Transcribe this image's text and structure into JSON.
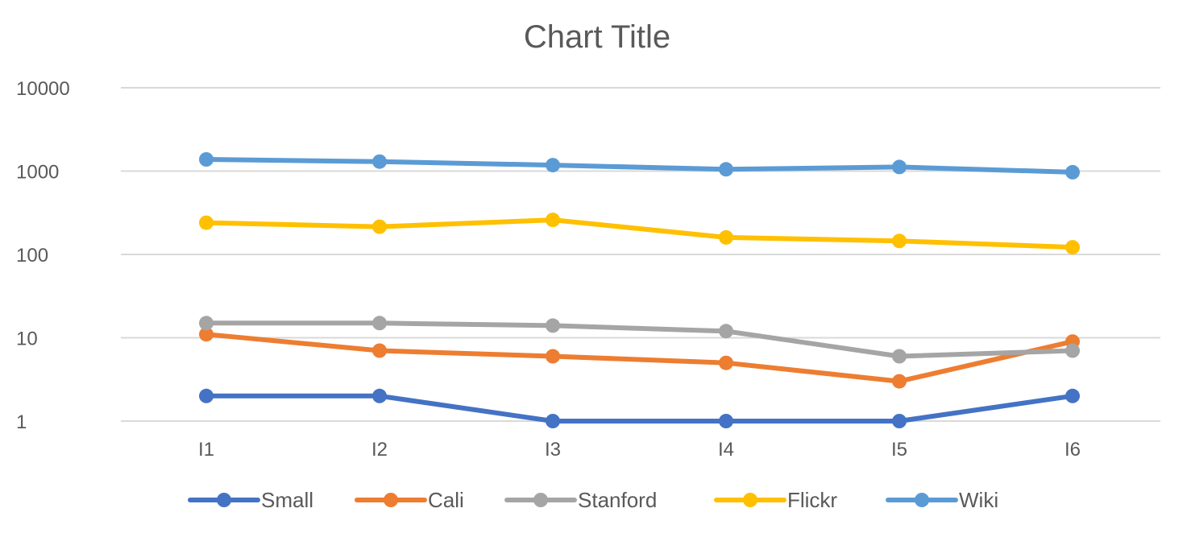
{
  "chart_data": {
    "type": "line",
    "title": "Chart Title",
    "xlabel": "",
    "ylabel": "",
    "y_scale": "log",
    "ylim": [
      1,
      10000
    ],
    "y_ticks": [
      "1",
      "10",
      "100",
      "1000",
      "10000"
    ],
    "y_tick_values": [
      1,
      10,
      100,
      1000,
      10000
    ],
    "grid": true,
    "legend_position": "bottom",
    "categories": [
      "I1",
      "I2",
      "I3",
      "I4",
      "I5",
      "I6"
    ],
    "series": [
      {
        "name": "Small",
        "color": "#4472C4",
        "values": [
          2,
          2,
          1,
          1,
          1,
          2
        ]
      },
      {
        "name": "Cali",
        "color": "#ED7D31",
        "values": [
          11,
          7,
          6,
          5,
          3,
          9
        ]
      },
      {
        "name": "Stanford",
        "color": "#A5A5A5",
        "values": [
          15,
          15,
          14,
          12,
          6,
          7
        ]
      },
      {
        "name": "Flickr",
        "color": "#FFC000",
        "values": [
          240,
          215,
          260,
          160,
          145,
          122
        ]
      },
      {
        "name": "Wiki",
        "color": "#5B9BD5",
        "values": [
          1380,
          1300,
          1180,
          1050,
          1120,
          970
        ]
      }
    ]
  }
}
